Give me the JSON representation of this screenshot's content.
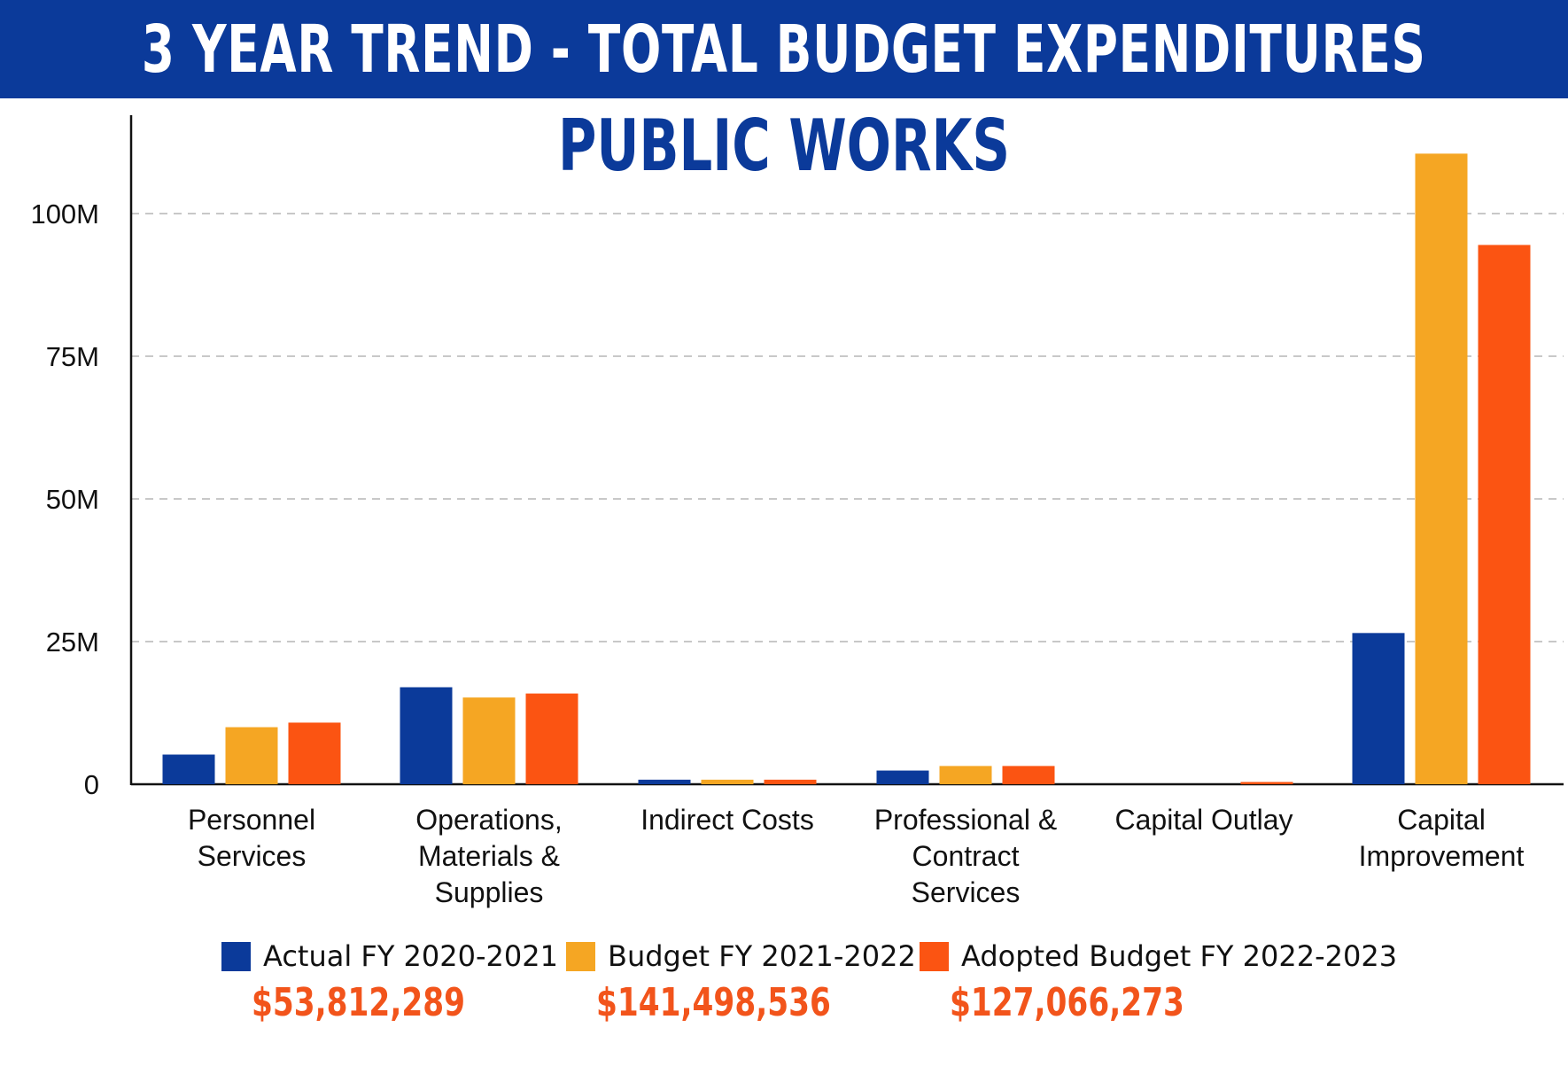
{
  "header": {
    "title": "3 YEAR TREND - TOTAL BUDGET EXPENDITURES"
  },
  "chart_data": {
    "type": "bar",
    "title": "PUBLIC WORKS",
    "xlabel": "",
    "ylabel": "",
    "ylim": [
      0,
      115000000
    ],
    "y_ticks": [
      0,
      25000000,
      50000000,
      75000000,
      100000000
    ],
    "y_tick_labels": [
      "0",
      "25M",
      "50M",
      "75M",
      "100M"
    ],
    "grid": true,
    "categories": [
      [
        "Personnel",
        "Services"
      ],
      [
        "Operations,",
        "Materials &",
        "Supplies"
      ],
      [
        "Indirect Costs"
      ],
      [
        "Professional &",
        "Contract",
        "Services"
      ],
      [
        "Capital Outlay"
      ],
      [
        "Capital",
        "Improvement"
      ]
    ],
    "series": [
      {
        "name": "Actual FY 2020-2021",
        "color": "#0b3a9a",
        "total": "$53,812,289",
        "values": [
          5200000,
          17000000,
          800000,
          2400000,
          0,
          26500000
        ]
      },
      {
        "name": "Budget FY 2021-2022",
        "color": "#f5a623",
        "total": "$141,498,536",
        "values": [
          10000000,
          15200000,
          800000,
          3200000,
          0,
          110500000
        ]
      },
      {
        "name": "Adopted Budget FY 2022-2023",
        "color": "#fb5412",
        "total": "$127,066,273",
        "values": [
          10800000,
          15900000,
          800000,
          3200000,
          400000,
          94500000
        ]
      }
    ],
    "legend_position": "bottom"
  }
}
